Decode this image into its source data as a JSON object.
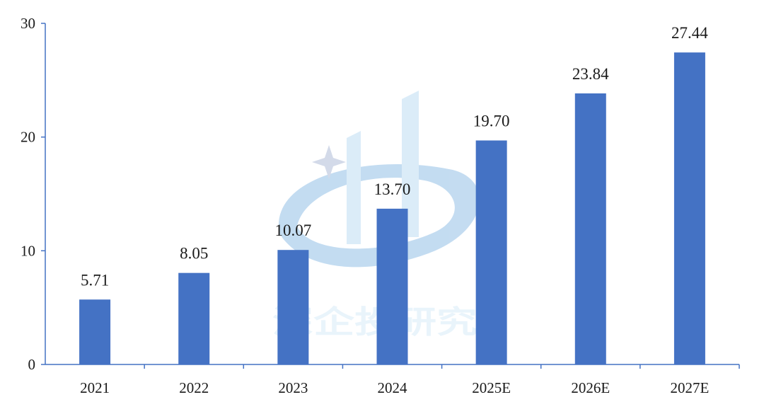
{
  "chart_data": {
    "type": "bar",
    "categories": [
      "2021",
      "2022",
      "2023",
      "2024",
      "2025E",
      "2026E",
      "2027E"
    ],
    "values": [
      5.71,
      8.05,
      10.07,
      13.7,
      19.7,
      23.84,
      27.44
    ],
    "value_labels": [
      "5.71",
      "8.05",
      "10.07",
      "13.70",
      "19.70",
      "23.84",
      "27.44"
    ],
    "yticks": [
      "0",
      "10",
      "20",
      "30"
    ],
    "ylim": [
      0,
      30
    ],
    "grid": false,
    "legend": "none",
    "colors": {
      "bar": "#4472C4",
      "axis": "#4472C4",
      "watermark": "#bcdcf2"
    }
  },
  "watermark": {
    "text": "深企投研究"
  }
}
